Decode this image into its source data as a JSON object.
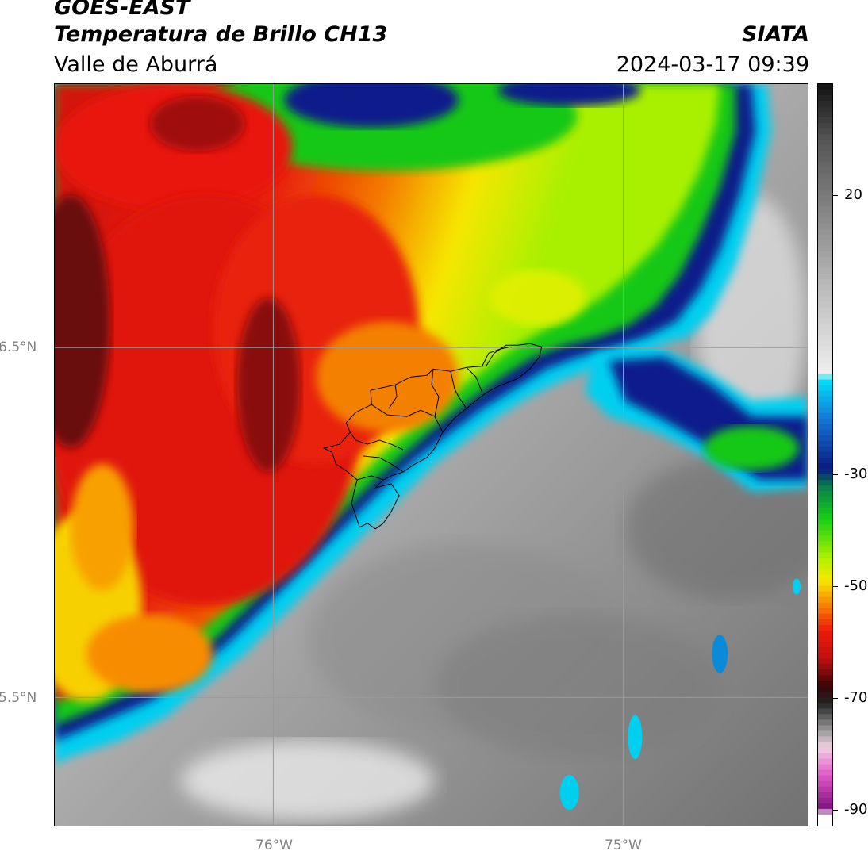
{
  "header": {
    "title_line1": "GOES-EAST",
    "title_line2": "Temperatura de Brillo CH13",
    "org": "SIATA",
    "region": "Valle de Aburrá",
    "datetime": "2024-03-17 09:39"
  },
  "map": {
    "gridlines": {
      "latitudes": [
        "6.5°N",
        "5.5°N"
      ],
      "longitudes": [
        "76°W",
        "75°W"
      ]
    },
    "gridline_color": "#9a9a9a",
    "boundary_color": "#000000",
    "palette": {
      "cold_cloud_red": "#e8160a",
      "dark_red": "#8a0a0a",
      "orange": "#f47a00",
      "yellow": "#f7e600",
      "lime": "#a8f000",
      "green": "#14c814",
      "dark_green": "#067a2a",
      "navy": "#0a1a8a",
      "blue": "#1060d0",
      "cyan": "#00d0f0",
      "light_gray": "#e2e2e2",
      "mid_gray": "#9a9a9a",
      "dark_gray": "#6e6e6e"
    }
  },
  "colorbar": {
    "ticks": [
      "20",
      "-30",
      "-50",
      "-70",
      "-90"
    ],
    "tick_values": [
      20,
      -30,
      -50,
      -70,
      -90
    ],
    "vmin": -93,
    "vmax": 40,
    "stops": [
      {
        "v": 40,
        "c": "#111111"
      },
      {
        "v": 30,
        "c": "#555555"
      },
      {
        "v": 20,
        "c": "#7a7a7a"
      },
      {
        "v": 5,
        "c": "#b5b5b5"
      },
      {
        "v": -12,
        "c": "#efefef"
      },
      {
        "v": -13,
        "c": "#00e0f8"
      },
      {
        "v": -20,
        "c": "#1478d8"
      },
      {
        "v": -29,
        "c": "#0a1a80"
      },
      {
        "v": -32,
        "c": "#0a7a50"
      },
      {
        "v": -38,
        "c": "#14d014"
      },
      {
        "v": -45,
        "c": "#b0f000"
      },
      {
        "v": -49,
        "c": "#f8e800"
      },
      {
        "v": -53,
        "c": "#f88c00"
      },
      {
        "v": -58,
        "c": "#f01a0a"
      },
      {
        "v": -63,
        "c": "#c01010"
      },
      {
        "v": -68,
        "c": "#3a0505"
      },
      {
        "v": -71,
        "c": "#222222"
      },
      {
        "v": -76,
        "c": "#9a9a9a"
      },
      {
        "v": -79,
        "c": "#f0d0e0"
      },
      {
        "v": -84,
        "c": "#e058c8"
      },
      {
        "v": -90,
        "c": "#801080"
      },
      {
        "v": -91,
        "c": "#ffffff"
      },
      {
        "v": -93,
        "c": "#ffffff"
      }
    ]
  }
}
